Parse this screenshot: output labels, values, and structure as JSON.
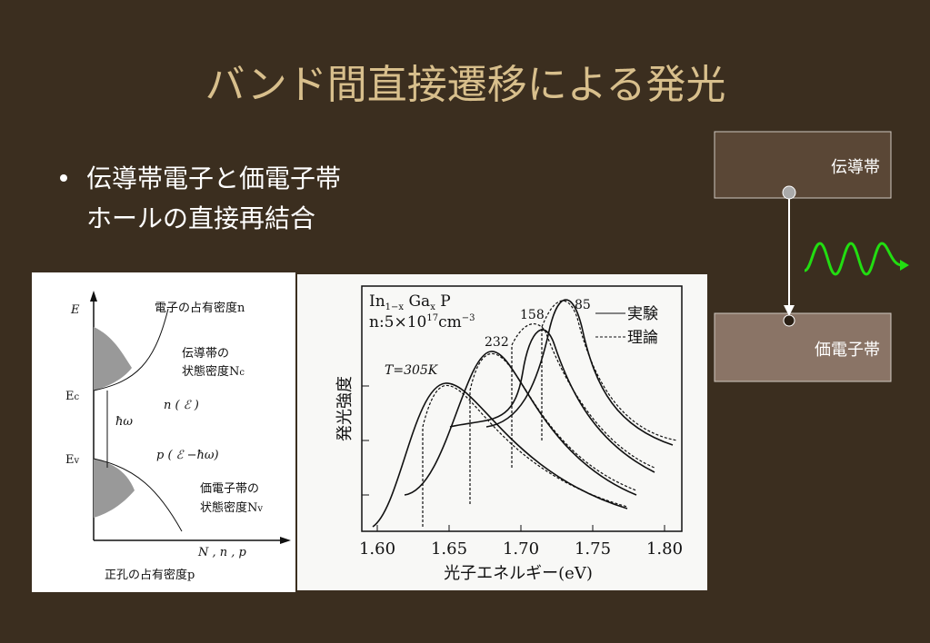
{
  "header": {
    "title": "バンド間直接遷移による発光"
  },
  "bullets": [
    {
      "lines": [
        "伝導帯電子と価電子帯",
        "ホールの直接再結合"
      ]
    }
  ],
  "diagram": {
    "conduction_band": "伝導帯",
    "valence_band": "価電子帯"
  },
  "figure1": {
    "axis_e": "E",
    "electron_occupancy": "電子の占有密度n",
    "cb_dos_1": "伝導帯の",
    "cb_dos_2": "状態密度N",
    "cb_dos_sub": "c",
    "ec": "E",
    "ec_sub": "c",
    "n_func": "n ( ℰ )",
    "hbar_omega": "ħω",
    "ev": "E",
    "ev_sub": "v",
    "p_func": "p ( ℰ −ħω)",
    "vb_dos_1": "価電子帯の",
    "vb_dos_2": "状態密度N",
    "vb_dos_sub": "v",
    "axis_n": "N , n , p",
    "hole_occupancy": "正孔の占有密度p"
  },
  "figure2": {
    "formula_in": "In",
    "formula_in_sub": "1−x",
    "formula_ga": " Ga",
    "formula_ga_sub": "x",
    "formula_p": " P",
    "conc": "n:5×10",
    "conc_exp": "17",
    "conc_unit": "cm",
    "conc_unit_exp": "−3",
    "temps": [
      "T=305K",
      "232",
      "158",
      "85"
    ],
    "legend_exp": "実験",
    "legend_theory": "理論",
    "y_label": "発光強度",
    "x_label": "光子エネルギー(eV)",
    "xticks": [
      "1.60",
      "1.65",
      "1.70",
      "1.75",
      "1.80"
    ]
  }
}
